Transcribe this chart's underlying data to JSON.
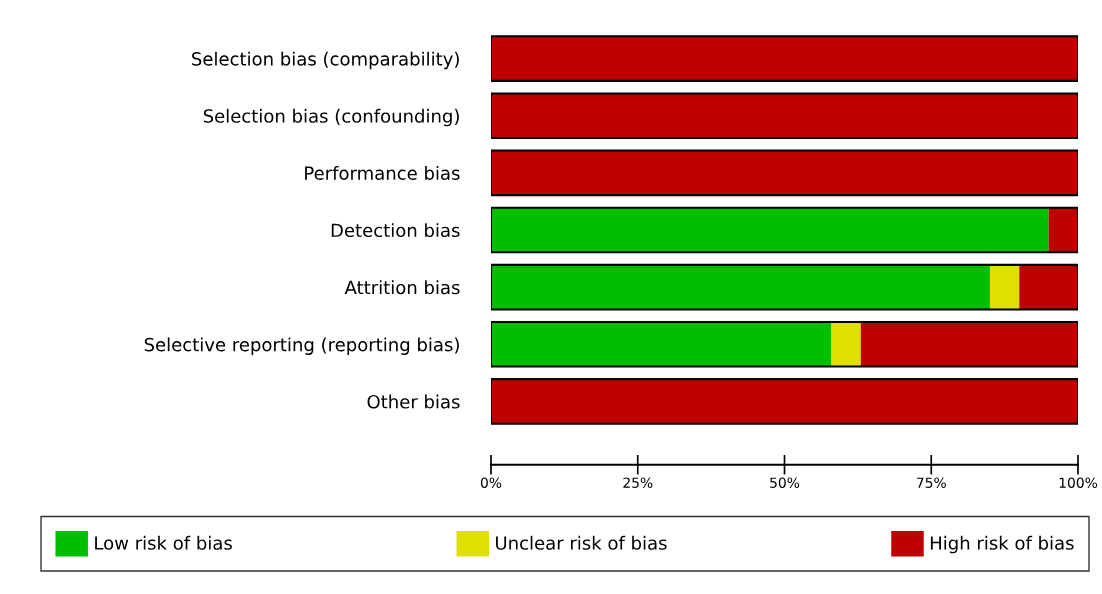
{
  "chart_data": {
    "type": "bar",
    "orientation": "horizontal",
    "stacked": true,
    "categories": [
      "Selection bias (comparability)",
      "Selection bias (confounding)",
      "Performance bias",
      "Detection bias",
      "Attrition bias",
      "Selective reporting (reporting bias)",
      "Other bias"
    ],
    "series": [
      {
        "name": "Low risk of bias",
        "color": "#00bf00",
        "values": [
          0,
          0,
          0,
          95,
          85,
          58,
          0
        ]
      },
      {
        "name": "Unclear risk of bias",
        "color": "#e0e000",
        "values": [
          0,
          0,
          0,
          0,
          5,
          5,
          0
        ]
      },
      {
        "name": "High risk of bias",
        "color": "#bf0000",
        "values": [
          100,
          100,
          100,
          5,
          10,
          37,
          100
        ]
      }
    ],
    "xlim": [
      0,
      100
    ],
    "xticks": [
      {
        "value": 0,
        "label": "0%"
      },
      {
        "value": 25,
        "label": "25%"
      },
      {
        "value": 50,
        "label": "50%"
      },
      {
        "value": 75,
        "label": "75%"
      },
      {
        "value": 100,
        "label": "100%"
      }
    ],
    "grid": false,
    "legend": "bottom"
  }
}
